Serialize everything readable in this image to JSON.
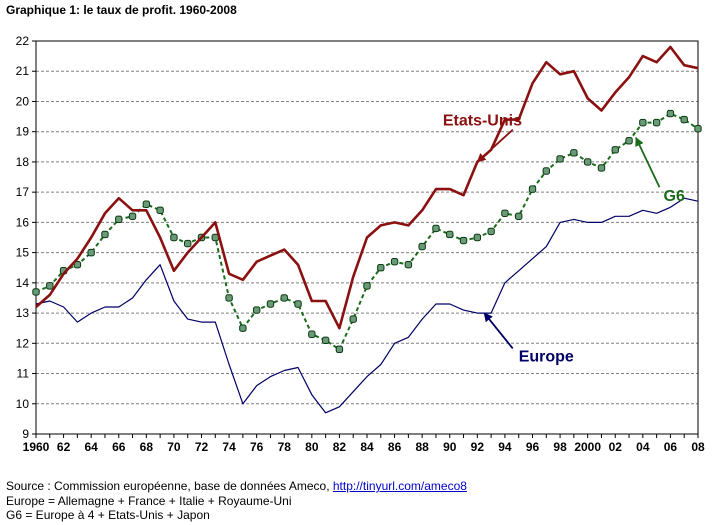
{
  "chart_data": {
    "type": "line",
    "title": "Graphique 1: le taux de profit. 1960-2008",
    "xlabel": "",
    "ylabel": "",
    "xlim": [
      1960,
      2008
    ],
    "ylim": [
      9,
      22
    ],
    "yticks": [
      9,
      10,
      11,
      12,
      13,
      14,
      15,
      16,
      17,
      18,
      19,
      20,
      21,
      22
    ],
    "x_tick_labels": [
      {
        "year": 1960,
        "label": "1960"
      },
      {
        "year": 1962,
        "label": "62"
      },
      {
        "year": 1964,
        "label": "64"
      },
      {
        "year": 1966,
        "label": "66"
      },
      {
        "year": 1968,
        "label": "68"
      },
      {
        "year": 1970,
        "label": "70"
      },
      {
        "year": 1972,
        "label": "72"
      },
      {
        "year": 1974,
        "label": "74"
      },
      {
        "year": 1976,
        "label": "76"
      },
      {
        "year": 1978,
        "label": "78"
      },
      {
        "year": 1980,
        "label": "80"
      },
      {
        "year": 1982,
        "label": "82"
      },
      {
        "year": 1984,
        "label": "84"
      },
      {
        "year": 1986,
        "label": "86"
      },
      {
        "year": 1988,
        "label": "88"
      },
      {
        "year": 1990,
        "label": "90"
      },
      {
        "year": 1992,
        "label": "92"
      },
      {
        "year": 1994,
        "label": "94"
      },
      {
        "year": 1996,
        "label": "96"
      },
      {
        "year": 1998,
        "label": "98"
      },
      {
        "year": 2000,
        "label": "2000"
      },
      {
        "year": 2002,
        "label": "02"
      },
      {
        "year": 2004,
        "label": "04"
      },
      {
        "year": 2006,
        "label": "06"
      },
      {
        "year": 2008,
        "label": "08"
      }
    ],
    "grid": "horizontal dashed",
    "x": [
      1960,
      1961,
      1962,
      1963,
      1964,
      1965,
      1966,
      1967,
      1968,
      1969,
      1970,
      1971,
      1972,
      1973,
      1974,
      1975,
      1976,
      1977,
      1978,
      1979,
      1980,
      1981,
      1982,
      1983,
      1984,
      1985,
      1986,
      1987,
      1988,
      1989,
      1990,
      1991,
      1992,
      1993,
      1994,
      1995,
      1996,
      1997,
      1998,
      1999,
      2000,
      2001,
      2002,
      2003,
      2004,
      2005,
      2006,
      2007,
      2008
    ],
    "series": [
      {
        "name": "Etats-Unis",
        "color": "#8b1010",
        "style": "solid-thick",
        "values": [
          13.2,
          13.6,
          14.3,
          14.8,
          15.5,
          16.3,
          16.8,
          16.4,
          16.4,
          15.5,
          14.4,
          15.0,
          15.5,
          16.0,
          14.3,
          14.1,
          14.7,
          14.9,
          15.1,
          14.6,
          13.4,
          13.4,
          12.5,
          14.2,
          15.5,
          15.9,
          16.0,
          15.9,
          16.4,
          17.1,
          17.1,
          16.9,
          18.0,
          18.4,
          19.4,
          19.4,
          20.6,
          21.3,
          20.9,
          21.0,
          20.1,
          19.7,
          20.3,
          20.8,
          21.5,
          21.3,
          21.8,
          21.2,
          21.1
        ]
      },
      {
        "name": "G6",
        "color": "#1a6b1a",
        "style": "dashed-markers",
        "values": [
          13.7,
          13.9,
          14.4,
          14.6,
          15.0,
          15.6,
          16.1,
          16.2,
          16.6,
          16.4,
          15.5,
          15.3,
          15.5,
          15.5,
          13.5,
          12.5,
          13.1,
          13.3,
          13.5,
          13.3,
          12.3,
          12.1,
          11.8,
          12.8,
          13.9,
          14.5,
          14.7,
          14.6,
          15.2,
          15.8,
          15.6,
          15.4,
          15.5,
          15.7,
          16.3,
          16.2,
          17.1,
          17.7,
          18.1,
          18.3,
          18.0,
          17.8,
          18.4,
          18.7,
          19.3,
          19.3,
          19.6,
          19.4,
          19.1
        ]
      },
      {
        "name": "Europe",
        "color": "#000066",
        "style": "solid-thin",
        "values": [
          13.3,
          13.4,
          13.2,
          12.7,
          13.0,
          13.2,
          13.2,
          13.5,
          14.1,
          14.6,
          13.4,
          12.8,
          12.7,
          12.7,
          11.3,
          10.0,
          10.6,
          10.9,
          11.1,
          11.2,
          10.3,
          9.7,
          9.9,
          10.4,
          10.9,
          11.3,
          12.0,
          12.2,
          12.8,
          13.3,
          13.3,
          13.1,
          13.0,
          13.0,
          14.0,
          14.4,
          14.8,
          15.2,
          16.0,
          16.1,
          16.0,
          16.0,
          16.2,
          16.2,
          16.4,
          16.3,
          16.5,
          16.8,
          16.7
        ]
      }
    ],
    "annotations": [
      {
        "text": "Etats-Unis",
        "series": "Etats-Unis",
        "text_at": [
          1989.5,
          19.2
        ],
        "arrow_to": [
          1992,
          18.0
        ],
        "color": "#8b1010"
      },
      {
        "text": "G6",
        "series": "G6",
        "text_at": [
          2005.5,
          16.7
        ],
        "arrow_to": [
          2003.5,
          18.8
        ],
        "color": "#1a6b1a"
      },
      {
        "text": "Europe",
        "series": "Europe",
        "text_at": [
          1995.0,
          11.4
        ],
        "arrow_to": [
          1992.5,
          13.0
        ],
        "color": "#000066"
      }
    ]
  },
  "footer": {
    "source_prefix": "Source : Commission européenne, base de données Ameco, ",
    "source_link": "http://tinyurl.com/ameco8",
    "line2": "Europe = Allemagne + France + Italie + Royaume-Uni",
    "line3": "G6 = Europe à 4 + Etats-Unis + Japon"
  }
}
